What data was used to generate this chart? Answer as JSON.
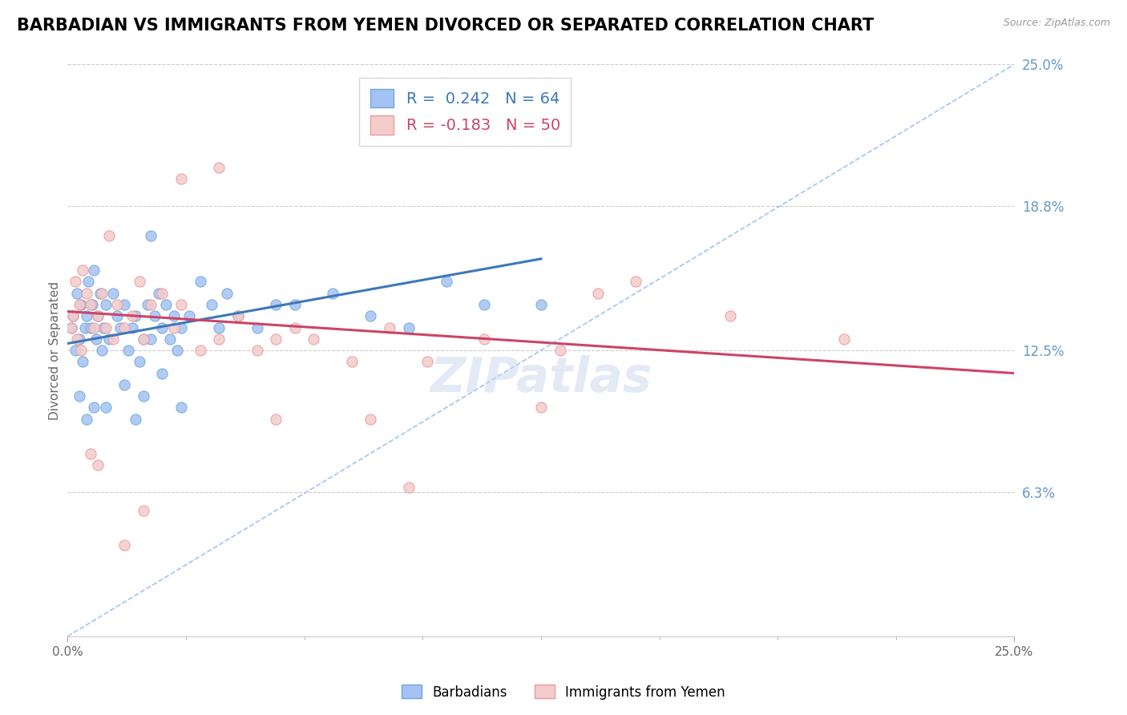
{
  "title": "BARBADIAN VS IMMIGRANTS FROM YEMEN DIVORCED OR SEPARATED CORRELATION CHART",
  "source": "Source: ZipAtlas.com",
  "ylabel": "Divorced or Separated",
  "x_min": 0.0,
  "x_max": 25.0,
  "y_min": 0.0,
  "y_max": 25.0,
  "y_ticks_right": [
    6.3,
    12.5,
    18.8,
    25.0
  ],
  "y_tick_labels_right": [
    "6.3%",
    "12.5%",
    "18.8%",
    "25.0%"
  ],
  "blue_scatter_x": [
    0.1,
    0.15,
    0.2,
    0.25,
    0.3,
    0.35,
    0.4,
    0.45,
    0.5,
    0.55,
    0.6,
    0.65,
    0.7,
    0.75,
    0.8,
    0.85,
    0.9,
    0.95,
    1.0,
    1.1,
    1.2,
    1.3,
    1.4,
    1.5,
    1.6,
    1.7,
    1.8,
    1.9,
    2.0,
    2.1,
    2.2,
    2.3,
    2.4,
    2.5,
    2.6,
    2.7,
    2.8,
    2.9,
    3.0,
    3.2,
    3.5,
    3.8,
    4.0,
    4.2,
    4.5,
    5.0,
    5.5,
    6.0,
    7.0,
    8.0,
    9.0,
    10.0,
    11.0,
    12.5,
    1.0,
    1.5,
    2.0,
    2.5,
    3.0,
    0.3,
    0.5,
    0.7,
    1.8,
    2.2
  ],
  "blue_scatter_y": [
    13.5,
    14.0,
    12.5,
    15.0,
    13.0,
    14.5,
    12.0,
    13.5,
    14.0,
    15.5,
    13.5,
    14.5,
    16.0,
    13.0,
    14.0,
    15.0,
    12.5,
    13.5,
    14.5,
    13.0,
    15.0,
    14.0,
    13.5,
    14.5,
    12.5,
    13.5,
    14.0,
    12.0,
    13.0,
    14.5,
    13.0,
    14.0,
    15.0,
    13.5,
    14.5,
    13.0,
    14.0,
    12.5,
    13.5,
    14.0,
    15.5,
    14.5,
    13.5,
    15.0,
    14.0,
    13.5,
    14.5,
    14.5,
    15.0,
    14.0,
    13.5,
    15.5,
    14.5,
    14.5,
    10.0,
    11.0,
    10.5,
    11.5,
    10.0,
    10.5,
    9.5,
    10.0,
    9.5,
    17.5
  ],
  "pink_scatter_x": [
    0.1,
    0.15,
    0.2,
    0.25,
    0.3,
    0.35,
    0.4,
    0.5,
    0.6,
    0.7,
    0.8,
    0.9,
    1.0,
    1.1,
    1.2,
    1.3,
    1.5,
    1.7,
    1.9,
    2.0,
    2.2,
    2.5,
    2.8,
    3.0,
    3.5,
    4.0,
    4.5,
    5.0,
    5.5,
    6.0,
    6.5,
    7.5,
    8.5,
    9.5,
    11.0,
    13.0,
    15.0,
    17.5,
    20.5,
    8.0,
    12.5,
    5.5,
    4.0,
    3.0,
    2.0,
    1.5,
    0.8,
    0.6,
    9.0,
    14.0
  ],
  "pink_scatter_y": [
    13.5,
    14.0,
    15.5,
    13.0,
    14.5,
    12.5,
    16.0,
    15.0,
    14.5,
    13.5,
    14.0,
    15.0,
    13.5,
    17.5,
    13.0,
    14.5,
    13.5,
    14.0,
    15.5,
    13.0,
    14.5,
    15.0,
    13.5,
    14.5,
    12.5,
    13.0,
    14.0,
    12.5,
    13.0,
    13.5,
    13.0,
    12.0,
    13.5,
    12.0,
    13.0,
    12.5,
    15.5,
    14.0,
    13.0,
    9.5,
    10.0,
    9.5,
    20.5,
    20.0,
    5.5,
    4.0,
    7.5,
    8.0,
    6.5,
    15.0
  ],
  "blue_line_x": [
    0.0,
    12.5
  ],
  "blue_line_y": [
    12.8,
    16.5
  ],
  "pink_line_x": [
    0.0,
    25.0
  ],
  "pink_line_y": [
    14.2,
    11.5
  ],
  "diag_line_x": [
    0.0,
    25.0
  ],
  "diag_line_y": [
    0.0,
    25.0
  ],
  "watermark": "ZIPatlas",
  "bg_color": "#ffffff",
  "blue_dot_color": "#a4c2f4",
  "blue_dot_edge": "#6fa8dc",
  "pink_dot_color": "#f4cccc",
  "pink_dot_edge": "#ea9999",
  "blue_line_color": "#3d78b8",
  "pink_line_color": "#cc4466",
  "diag_line_color": "#a4c2f4",
  "grid_color": "#cccccc",
  "right_label_color": "#6699cc",
  "title_color": "#000000",
  "title_fontsize": 15,
  "axis_label_fontsize": 11,
  "tick_fontsize": 11
}
